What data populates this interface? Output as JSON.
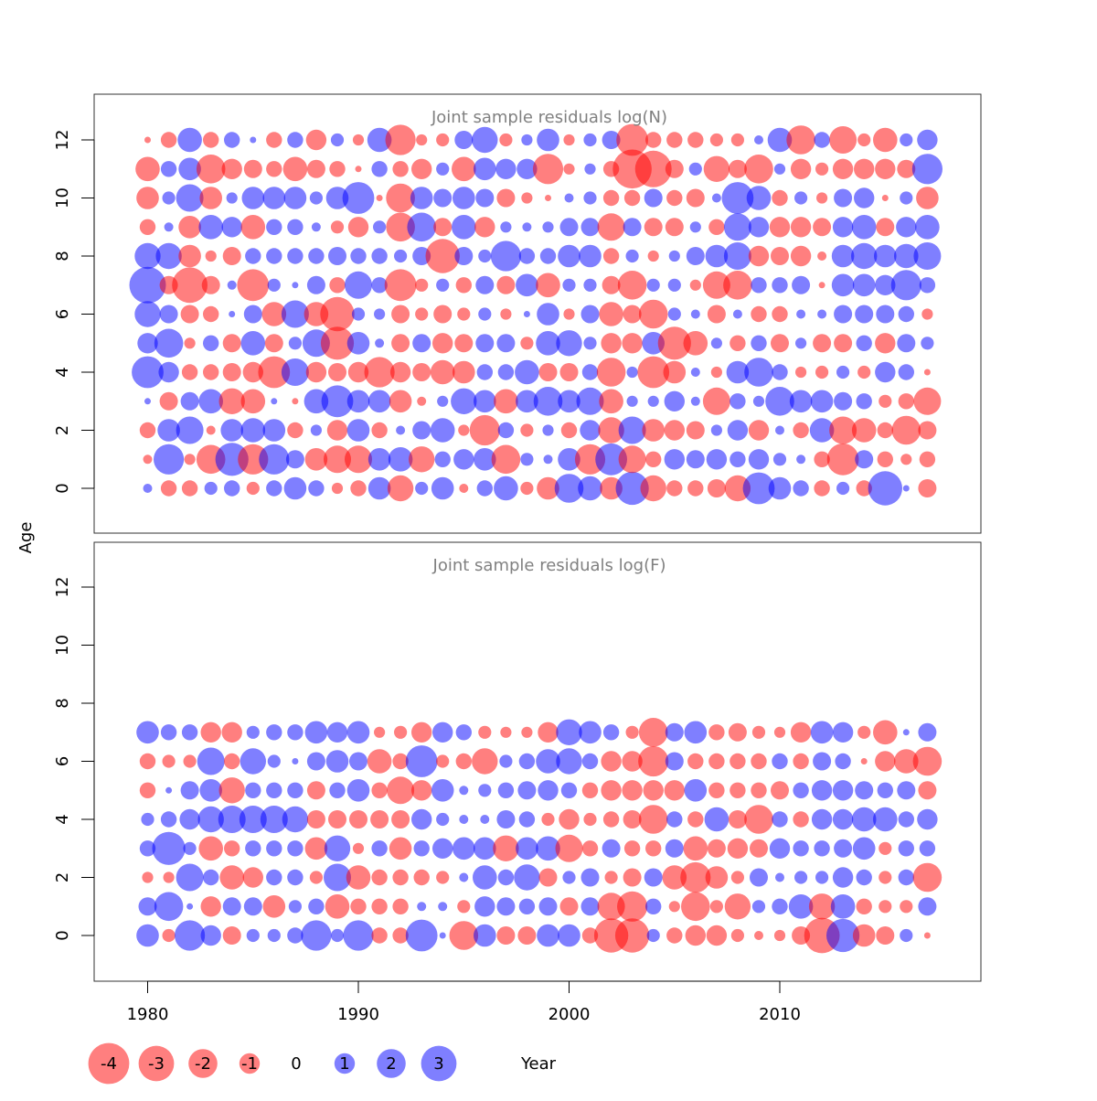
{
  "chart_data": [
    {
      "type": "scatter",
      "subtype": "bubble",
      "title": "Joint sample residuals log(N)",
      "xlabel": "Year",
      "ylabel": "Age",
      "xlim": [
        1977.5,
        2019.5
      ],
      "ylim": [
        -1.5,
        13.5
      ],
      "x_ticks": [
        1980,
        1990,
        2000,
        2010
      ],
      "y_ticks": [
        0,
        2,
        4,
        6,
        8,
        10,
        12
      ],
      "grid": false,
      "colors": {
        "negative": "#ff0000",
        "positive": "#0000ff",
        "opacity": 0.5
      },
      "years": [
        1980,
        1981,
        1982,
        1983,
        1984,
        1985,
        1986,
        1987,
        1988,
        1989,
        1990,
        1991,
        1992,
        1993,
        1994,
        1995,
        1996,
        1997,
        1998,
        1999,
        2000,
        2001,
        2002,
        2003,
        2004,
        2005,
        2006,
        2007,
        2008,
        2009,
        2010,
        2011,
        2012,
        2013,
        2014,
        2015,
        2016,
        2017
      ],
      "ages": [
        0,
        1,
        2,
        3,
        4,
        5,
        6,
        7,
        8,
        9,
        10,
        11,
        12
      ],
      "residuals_by_age": [
        [
          0.2,
          -0.6,
          -0.6,
          0.4,
          0.6,
          -0.4,
          0.6,
          1.2,
          0.6,
          -0.3,
          -0.6,
          1.2,
          -1.6,
          0.4,
          1.2,
          -0.2,
          0.6,
          1.4,
          -0.4,
          -1.2,
          2.0,
          1.4,
          -1.2,
          2.6,
          -1.6,
          -0.6,
          -0.6,
          -0.8,
          -1.6,
          2.4,
          1.2,
          0.6,
          -0.6,
          0.4,
          -0.6,
          2.8,
          0.1,
          -0.8
        ],
        [
          -0.2,
          2.2,
          -0.3,
          -2.0,
          2.6,
          -2.2,
          2.2,
          0.8,
          -1.2,
          -1.8,
          -1.8,
          1.2,
          1.4,
          -1.6,
          0.6,
          1.0,
          1.2,
          -2.0,
          0.4,
          0.2,
          1.2,
          -2.2,
          2.4,
          -1.8,
          -0.6,
          1.0,
          0.8,
          1.0,
          0.6,
          1.0,
          0.4,
          0.2,
          -0.6,
          -2.4,
          0.8,
          -0.6,
          -0.3,
          -0.6
        ],
        [
          -0.6,
          1.2,
          1.8,
          -0.2,
          1.2,
          1.4,
          1.2,
          -0.6,
          0.3,
          -1.0,
          1.2,
          -0.6,
          0.2,
          0.8,
          1.4,
          -0.3,
          -2.2,
          0.6,
          -0.4,
          0.3,
          -0.6,
          1.0,
          -1.6,
          1.8,
          -1.2,
          -1.0,
          -0.8,
          0.3,
          1.0,
          -1.0,
          0.2,
          -0.6,
          1.4,
          -1.8,
          -1.4,
          -0.6,
          -2.0,
          -0.8
        ],
        [
          0.1,
          -0.8,
          0.8,
          1.4,
          -1.6,
          -1.4,
          0.1,
          -0.1,
          1.4,
          2.4,
          1.2,
          1.2,
          -1.2,
          -0.2,
          0.3,
          1.6,
          1.2,
          -1.4,
          1.2,
          2.0,
          1.2,
          1.8,
          -1.4,
          0.3,
          0.3,
          1.0,
          0.2,
          -1.8,
          0.6,
          0.3,
          2.0,
          1.2,
          1.2,
          0.8,
          0.6,
          -0.4,
          -0.6,
          -1.8
        ],
        [
          2.4,
          1.0,
          -0.6,
          -0.6,
          -0.8,
          -1.0,
          -2.4,
          1.8,
          -1.0,
          -0.8,
          -1.0,
          -2.2,
          -1.0,
          -0.8,
          -1.4,
          -1.2,
          0.6,
          0.6,
          1.4,
          -0.8,
          -0.8,
          0.6,
          -2.0,
          0.3,
          -2.4,
          -1.2,
          0.2,
          -0.3,
          1.2,
          2.0,
          0.6,
          -0.3,
          -0.4,
          0.4,
          -0.4,
          1.0,
          0.6,
          -0.1
        ],
        [
          1.0,
          2.0,
          -0.3,
          0.6,
          -0.8,
          1.4,
          -0.8,
          0.4,
          1.8,
          -2.6,
          1.2,
          0.2,
          -0.8,
          0.8,
          -1.0,
          -0.8,
          0.8,
          0.8,
          -0.4,
          1.4,
          1.6,
          0.4,
          -1.0,
          -1.0,
          1.2,
          -2.6,
          -1.4,
          0.3,
          -0.6,
          0.6,
          -0.8,
          0.3,
          -0.8,
          -0.8,
          0.6,
          -1.0,
          0.8,
          0.4
        ],
        [
          1.6,
          0.8,
          -0.8,
          -0.6,
          0.1,
          0.8,
          -1.4,
          1.8,
          -1.4,
          -2.8,
          0.4,
          0.3,
          -0.8,
          -0.4,
          -0.8,
          -0.4,
          0.4,
          -0.3,
          0.1,
          1.2,
          -0.3,
          0.8,
          -1.4,
          -0.8,
          -2.0,
          0.4,
          0.2,
          -0.8,
          0.2,
          -0.6,
          -0.6,
          0.2,
          0.2,
          0.8,
          0.8,
          0.8,
          0.6,
          -0.3
        ],
        [
          3.2,
          -0.8,
          -3.0,
          -0.8,
          0.2,
          -2.4,
          0.4,
          0.1,
          0.8,
          -0.6,
          1.8,
          0.6,
          -2.4,
          -0.4,
          0.4,
          -0.6,
          0.8,
          -0.8,
          1.2,
          -1.4,
          0.4,
          0.4,
          -0.8,
          -2.0,
          0.4,
          0.4,
          -0.3,
          -1.8,
          -2.0,
          0.6,
          0.6,
          0.8,
          -0.1,
          1.2,
          1.2,
          1.0,
          2.2,
          0.6
        ],
        [
          1.6,
          1.6,
          -1.2,
          -0.3,
          -0.8,
          0.6,
          0.6,
          0.6,
          0.6,
          0.8,
          0.6,
          0.6,
          0.4,
          0.8,
          -2.8,
          0.8,
          0.4,
          2.2,
          0.6,
          0.6,
          1.2,
          1.2,
          -0.6,
          0.4,
          -0.3,
          0.3,
          0.8,
          1.2,
          1.8,
          -1.0,
          -0.8,
          -1.0,
          -0.2,
          1.2,
          1.6,
          1.2,
          1.4,
          1.8
        ],
        [
          -0.6,
          0.2,
          -1.2,
          1.4,
          1.0,
          -1.4,
          0.6,
          0.6,
          0.2,
          -0.4,
          -1.0,
          0.4,
          -2.0,
          2.0,
          -0.8,
          1.4,
          -1.0,
          0.3,
          0.2,
          0.3,
          0.8,
          0.8,
          -1.8,
          0.8,
          -0.8,
          -0.8,
          0.3,
          -0.6,
          1.8,
          1.0,
          -1.0,
          -1.0,
          -0.8,
          1.0,
          1.4,
          -0.8,
          1.0,
          1.4
        ],
        [
          -1.2,
          0.4,
          1.8,
          -1.2,
          0.3,
          1.2,
          1.2,
          1.2,
          0.4,
          1.2,
          2.4,
          -0.1,
          -2.0,
          1.2,
          0.8,
          1.2,
          0.8,
          -0.8,
          -0.3,
          -0.1,
          0.2,
          0.4,
          -0.6,
          -0.6,
          0.8,
          -0.6,
          -0.8,
          0.2,
          2.4,
          1.4,
          -0.6,
          0.4,
          -0.3,
          0.8,
          1.0,
          -0.1,
          0.4,
          -1.2
        ],
        [
          -1.4,
          0.6,
          1.2,
          -2.0,
          -1.0,
          -0.8,
          -0.6,
          -1.4,
          -0.8,
          -0.6,
          -0.1,
          0.6,
          -0.6,
          -1.0,
          0.4,
          -1.4,
          1.2,
          1.0,
          1.0,
          -2.2,
          -0.3,
          0.3,
          -0.6,
          -3.6,
          -3.2,
          -0.8,
          0.4,
          -1.6,
          -0.8,
          -2.0,
          0.3,
          -1.0,
          -0.4,
          -1.0,
          -1.0,
          -1.0,
          -0.8,
          2.2
        ],
        [
          -0.1,
          -0.6,
          1.4,
          -0.6,
          0.6,
          0.1,
          -0.6,
          0.6,
          -1.0,
          0.4,
          -0.3,
          1.4,
          -2.2,
          -0.3,
          -0.4,
          0.8,
          1.6,
          -0.4,
          0.3,
          1.2,
          -0.3,
          0.4,
          0.8,
          -2.4,
          -0.6,
          -0.6,
          -0.6,
          -0.4,
          -0.4,
          0.2,
          1.4,
          -2.0,
          0.6,
          -1.8,
          -0.4,
          -1.4,
          0.4,
          1.0
        ]
      ]
    },
    {
      "type": "scatter",
      "subtype": "bubble",
      "title": "Joint sample residuals log(F)",
      "xlabel": "Year",
      "ylabel": "Age",
      "xlim": [
        1977.5,
        2019.5
      ],
      "ylim": [
        -1.5,
        13.5
      ],
      "x_ticks": [
        1980,
        1990,
        2000,
        2010
      ],
      "y_ticks": [
        0,
        2,
        4,
        6,
        8,
        10,
        12
      ],
      "grid": false,
      "colors": {
        "negative": "#ff0000",
        "positive": "#0000ff",
        "opacity": 0.5
      },
      "years": [
        1980,
        1981,
        1982,
        1983,
        1984,
        1985,
        1986,
        1987,
        1988,
        1989,
        1990,
        1991,
        1992,
        1993,
        1994,
        1995,
        1996,
        1997,
        1998,
        1999,
        2000,
        2001,
        2002,
        2003,
        2004,
        2005,
        2006,
        2007,
        2008,
        2009,
        2010,
        2011,
        2012,
        2013,
        2014,
        2015,
        2016,
        2017
      ],
      "ages": [
        0,
        1,
        2,
        3,
        4,
        5,
        6,
        7
      ],
      "residuals_by_age": [
        [
          1.2,
          -0.4,
          2.2,
          1.0,
          -0.8,
          0.4,
          0.4,
          0.6,
          2.2,
          0.4,
          2.2,
          -0.6,
          -0.6,
          2.4,
          0.1,
          -2.0,
          1.2,
          -0.8,
          -0.8,
          1.2,
          1.2,
          -0.6,
          -2.8,
          -2.8,
          0.4,
          -0.6,
          -1.0,
          -1.0,
          -0.4,
          -0.2,
          -0.3,
          -0.8,
          -3.0,
          2.6,
          -1.2,
          -0.8,
          0.4,
          -0.1
        ],
        [
          0.8,
          2.0,
          0.1,
          -1.0,
          0.8,
          0.8,
          -1.2,
          0.4,
          0.6,
          -1.4,
          -0.6,
          -0.6,
          -0.6,
          0.2,
          0.2,
          -0.4,
          1.0,
          0.8,
          0.6,
          0.8,
          -0.8,
          0.8,
          -1.8,
          -2.2,
          0.6,
          -0.3,
          -2.0,
          -0.4,
          -1.6,
          0.4,
          0.6,
          1.4,
          -1.6,
          1.4,
          -0.6,
          -0.4,
          -0.4,
          0.8
        ],
        [
          -0.3,
          -0.3,
          1.8,
          0.6,
          -1.4,
          -1.0,
          0.6,
          0.6,
          -0.4,
          1.8,
          -1.4,
          -0.6,
          -0.6,
          -0.6,
          -0.4,
          0.2,
          1.4,
          0.6,
          1.6,
          -0.8,
          0.4,
          0.8,
          -0.4,
          -0.8,
          0.8,
          -1.4,
          -2.2,
          -1.2,
          -0.4,
          0.8,
          0.2,
          0.4,
          0.4,
          1.0,
          0.6,
          -0.4,
          0.6,
          -2.0
        ],
        [
          0.6,
          2.6,
          0.4,
          -1.4,
          -0.6,
          0.6,
          0.6,
          0.6,
          -1.2,
          1.6,
          -0.3,
          0.6,
          -1.2,
          0.6,
          1.0,
          1.2,
          1.2,
          -1.6,
          1.2,
          1.4,
          -1.8,
          -0.6,
          0.8,
          -0.6,
          -0.6,
          0.8,
          -1.4,
          -0.8,
          -1.0,
          -0.8,
          1.0,
          0.6,
          0.6,
          0.8,
          1.2,
          -0.4,
          0.6,
          0.6
        ],
        [
          0.4,
          0.6,
          1.0,
          1.6,
          1.8,
          1.8,
          1.8,
          1.6,
          -0.8,
          -0.8,
          -0.8,
          -0.8,
          -0.8,
          1.0,
          0.4,
          0.2,
          0.2,
          0.8,
          0.6,
          -0.4,
          -1.0,
          -0.4,
          -0.6,
          -0.8,
          -2.0,
          0.6,
          -0.6,
          1.4,
          -0.8,
          -2.0,
          0.6,
          -0.6,
          1.0,
          1.0,
          1.4,
          1.4,
          0.6,
          1.0
        ],
        [
          -0.6,
          0.1,
          0.8,
          1.2,
          -1.6,
          0.6,
          0.6,
          0.6,
          -0.8,
          0.6,
          1.2,
          -0.6,
          -1.8,
          -1.0,
          1.2,
          0.2,
          0.4,
          0.6,
          0.8,
          1.0,
          0.6,
          -0.6,
          -1.0,
          -1.0,
          -1.0,
          -1.0,
          1.2,
          -0.6,
          -0.6,
          -0.6,
          -0.8,
          0.6,
          1.0,
          1.0,
          0.8,
          0.6,
          0.8,
          -0.8
        ],
        [
          -0.6,
          -0.4,
          -0.4,
          1.8,
          -0.6,
          1.6,
          0.4,
          0.1,
          0.8,
          1.2,
          0.8,
          -1.4,
          -0.6,
          2.4,
          -0.4,
          -0.6,
          -1.6,
          0.4,
          0.6,
          1.4,
          1.6,
          0.6,
          -1.0,
          -1.0,
          -2.2,
          0.8,
          -0.6,
          -0.6,
          -0.6,
          -0.6,
          0.6,
          -0.6,
          0.8,
          0.6,
          -0.1,
          -1.0,
          -1.4,
          -2.0
        ],
        [
          1.2,
          0.6,
          0.6,
          -1.0,
          -1.0,
          0.4,
          0.6,
          0.6,
          1.2,
          1.0,
          1.2,
          -0.3,
          -0.4,
          -1.0,
          1.0,
          0.6,
          -0.4,
          -0.3,
          -0.3,
          -1.0,
          1.6,
          1.2,
          0.6,
          -0.4,
          -2.0,
          0.8,
          1.2,
          -0.6,
          -0.8,
          -0.4,
          -0.3,
          -1.0,
          1.2,
          1.0,
          -0.4,
          -1.4,
          0.1,
          0.8
        ]
      ]
    }
  ],
  "axis": {
    "x_tick_labels": [
      "1980",
      "1990",
      "2000",
      "2010"
    ],
    "y_tick_labels": [
      "0",
      "2",
      "4",
      "6",
      "8",
      "10",
      "12"
    ],
    "xlabel": "Year",
    "ylabel": "Age"
  },
  "legend": {
    "items": [
      {
        "label": "-4",
        "value": -4
      },
      {
        "label": "-3",
        "value": -3
      },
      {
        "label": "-2",
        "value": -2
      },
      {
        "label": "-1",
        "value": -1
      },
      {
        "label": "0",
        "value": 0
      },
      {
        "label": "1",
        "value": 1
      },
      {
        "label": "2",
        "value": 2
      },
      {
        "label": "3",
        "value": 3
      }
    ]
  }
}
